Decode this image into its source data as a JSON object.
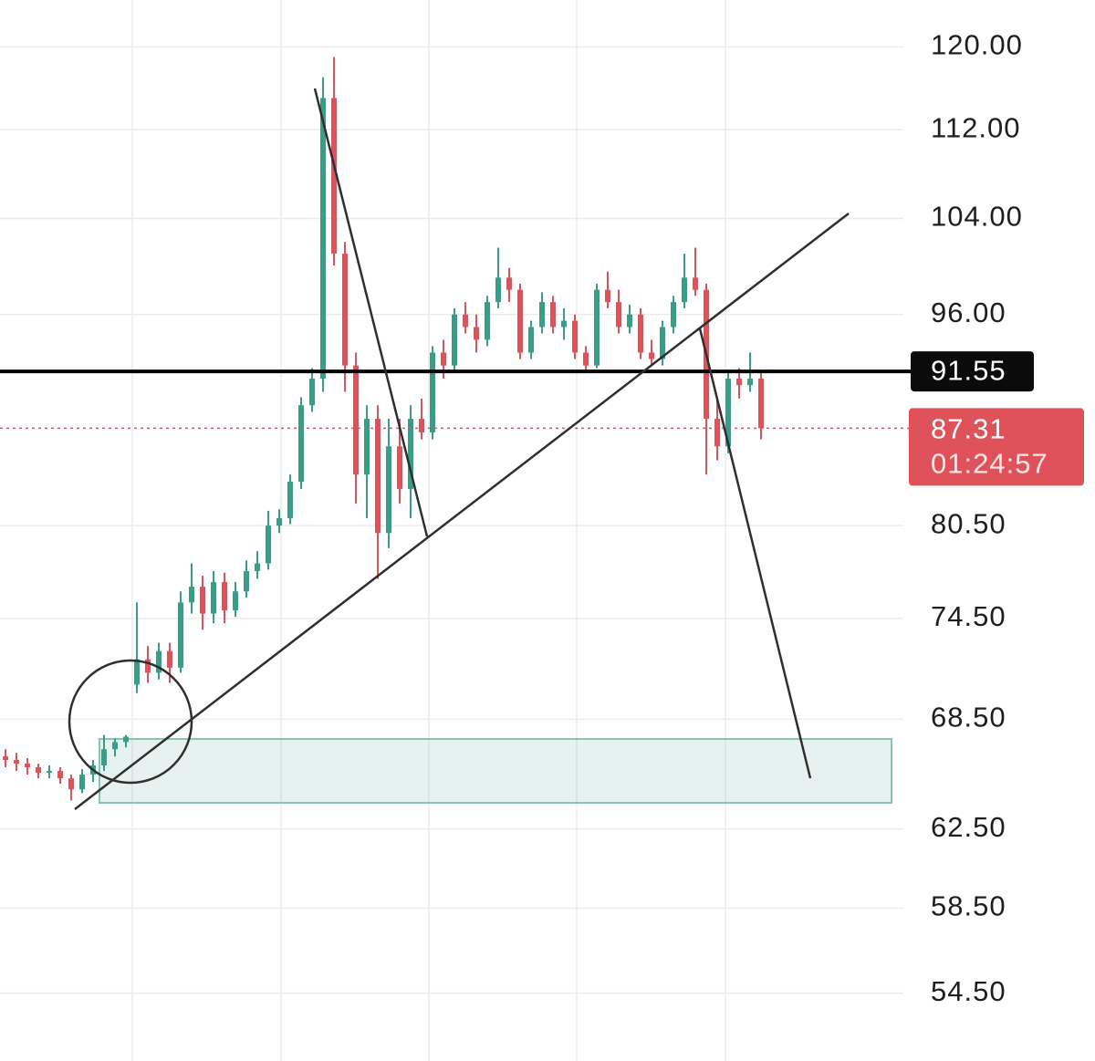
{
  "chart_data": {
    "type": "candlestick",
    "log_scale": true,
    "grid": true,
    "ylim": [
      51.5,
      124.8
    ],
    "yticks": [
      {
        "value": 120,
        "label": "120.00"
      },
      {
        "value": 112,
        "label": "112.00"
      },
      {
        "value": 104,
        "label": "104.00"
      },
      {
        "value": 96,
        "label": "96.00"
      },
      {
        "value": 80.5,
        "label": "80.50"
      },
      {
        "value": 74.5,
        "label": "74.50"
      },
      {
        "value": 68.5,
        "label": "68.50"
      },
      {
        "value": 62.5,
        "label": "62.50"
      },
      {
        "value": 58.5,
        "label": "58.50"
      },
      {
        "value": 54.5,
        "label": "54.50"
      }
    ],
    "up_color": "#3a9d87",
    "down_color": "#e0525a",
    "level": 91.55,
    "last_price": 87.31,
    "countdown": "01:24:57",
    "open": [
      66.4,
      66.2,
      66.0,
      65.8,
      65.5,
      65.6,
      65.2,
      64.6,
      65.4,
      65.9,
      66.8,
      67.2,
      70.5,
      72.0,
      71.2,
      72.5,
      71.5,
      75.5,
      76.5,
      74.8,
      76.8,
      75.0,
      76.2,
      77.5,
      78.0,
      80.5,
      81.0,
      83.5,
      89.0,
      91.0,
      115.0,
      101.0,
      92.0,
      84.0,
      88.0,
      80.0,
      86.0,
      83.0,
      88.0,
      87.0,
      93.0,
      92.0,
      96.0,
      95.0,
      94.0,
      97.0,
      99.0,
      98.0,
      93.0,
      95.0,
      97.0,
      95.0,
      95.5,
      93.0,
      92.0,
      98.0,
      97.0,
      95.0,
      96.0,
      93.0,
      92.5,
      95.0,
      97.0,
      99.0,
      98.0,
      88.0,
      86.0,
      91.0,
      90.5,
      91.0
    ],
    "high": [
      66.8,
      66.6,
      66.3,
      66.0,
      65.9,
      65.8,
      65.4,
      65.7,
      66.2,
      67.6,
      67.4,
      67.6,
      75.5,
      72.8,
      73.0,
      73.0,
      76.2,
      78.0,
      77.2,
      77.5,
      77.4,
      76.8,
      78.2,
      78.8,
      81.5,
      81.6,
      84.0,
      89.6,
      91.8,
      117.0,
      119.0,
      102.0,
      93.0,
      89.0,
      89.0,
      88.0,
      88.0,
      89.0,
      89.5,
      93.5,
      94.0,
      96.5,
      97.0,
      96.0,
      97.5,
      101.5,
      99.8,
      98.5,
      95.5,
      97.8,
      97.5,
      96.5,
      96.0,
      93.5,
      98.5,
      99.5,
      98.0,
      96.8,
      96.5,
      94.0,
      95.5,
      97.5,
      101.0,
      101.5,
      98.5,
      89.5,
      91.5,
      91.8,
      93.0,
      91.5
    ],
    "low": [
      65.8,
      65.6,
      65.4,
      65.2,
      65.2,
      64.9,
      64.0,
      64.4,
      65.0,
      65.6,
      66.4,
      66.9,
      70.0,
      70.6,
      70.8,
      70.6,
      71.2,
      74.8,
      73.8,
      74.2,
      74.2,
      74.6,
      75.8,
      77.0,
      77.6,
      80.0,
      80.6,
      83.0,
      88.5,
      90.0,
      100.0,
      90.0,
      82.0,
      81.0,
      77.0,
      79.0,
      82.0,
      81.0,
      86.5,
      86.5,
      91.0,
      91.5,
      94.5,
      93.0,
      93.5,
      96.5,
      97.0,
      92.5,
      92.5,
      94.5,
      94.5,
      94.0,
      92.5,
      91.5,
      91.8,
      96.5,
      94.5,
      94.5,
      92.5,
      92.0,
      92.0,
      94.5,
      96.5,
      97.5,
      84.0,
      85.0,
      85.5,
      89.5,
      90.0,
      86.5
    ],
    "close": [
      66.2,
      66.0,
      65.8,
      65.5,
      65.6,
      65.2,
      64.6,
      65.4,
      65.9,
      66.8,
      67.2,
      67.5,
      72.0,
      71.2,
      72.5,
      71.5,
      75.5,
      76.5,
      74.8,
      76.8,
      75.0,
      76.2,
      77.5,
      78.0,
      80.5,
      81.0,
      83.5,
      89.0,
      91.0,
      115.0,
      101.0,
      92.0,
      84.0,
      88.0,
      80.0,
      86.0,
      83.0,
      88.0,
      87.0,
      93.0,
      92.0,
      96.0,
      95.0,
      94.0,
      97.0,
      99.0,
      98.0,
      93.0,
      95.0,
      97.0,
      95.0,
      95.5,
      93.0,
      92.0,
      98.0,
      97.0,
      95.0,
      96.0,
      93.0,
      92.5,
      95.0,
      97.0,
      99.0,
      98.0,
      88.0,
      86.0,
      91.0,
      90.5,
      91.0,
      87.31
    ]
  }
}
